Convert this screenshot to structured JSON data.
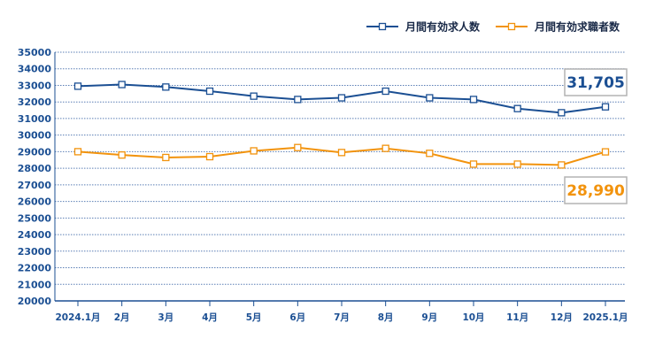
{
  "chart_data": {
    "type": "line",
    "categories": [
      "2024.1月",
      "2月",
      "3月",
      "4月",
      "5月",
      "6月",
      "7月",
      "8月",
      "9月",
      "10月",
      "11月",
      "12月",
      "2025.1月"
    ],
    "ylim": [
      20000,
      35000
    ],
    "yticks": [
      20000,
      21000,
      22000,
      23000,
      24000,
      25000,
      26000,
      27000,
      28000,
      29000,
      30000,
      31000,
      32000,
      33000,
      34000,
      35000
    ],
    "grid": true,
    "legend_position": "top-right",
    "series": [
      {
        "name": "月間有効求人数",
        "color": "#1b4f93",
        "values": [
          32950,
          33050,
          32900,
          32650,
          32350,
          32150,
          32250,
          32650,
          32250,
          32150,
          31600,
          31350,
          31705
        ]
      },
      {
        "name": "月間有効求職者数",
        "color": "#f2930d",
        "values": [
          29000,
          28800,
          28650,
          28700,
          29050,
          29250,
          28950,
          29200,
          28900,
          28250,
          28250,
          28200,
          28990
        ]
      }
    ],
    "annotations": [
      {
        "series": 0,
        "text": "31,705"
      },
      {
        "series": 1,
        "text": "28,990"
      }
    ]
  }
}
